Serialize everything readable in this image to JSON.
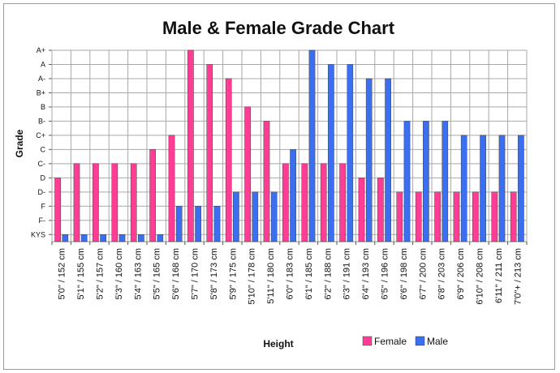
{
  "chart_data": {
    "type": "bar",
    "title": "Male & Female Grade Chart",
    "xlabel": "Height",
    "ylabel": "Grade",
    "y_categories": [
      "KYS",
      "F-",
      "F",
      "D-",
      "D",
      "C-",
      "C",
      "C+",
      "B-",
      "B",
      "B+",
      "A-",
      "A",
      "A+"
    ],
    "categories": [
      "5'0\" / 152 cm",
      "5'1\" / 155 cm",
      "5'2\" / 157 cm",
      "5'3\" / 160 cm",
      "5'4\" / 163 cm",
      "5'5\" / 165 cm",
      "5'6\" / 168 cm",
      "5'7\" / 170 cm",
      "5'8\" / 173 cm",
      "5'9\" / 175 cm",
      "5'10\" / 178 cm",
      "5'11\" / 180 cm",
      "6'0\" / 183 cm",
      "6'1\" / 185 cm",
      "6'2\" / 188 cm",
      "6'3\" / 191 cm",
      "6'4\" / 193 cm",
      "6'5\" / 196 cm",
      "6'6\" / 198 cm",
      "6'7\" / 200 cm",
      "6'8\" / 203 cm",
      "6'9\" / 206 cm",
      "6'10\" / 208 cm",
      "6'11\" / 211 cm",
      "7'0\"+ / 213 cm"
    ],
    "series": [
      {
        "name": "Female",
        "color": "#ff3d94",
        "values": [
          "D",
          "C-",
          "C-",
          "C-",
          "C-",
          "C",
          "C+",
          "A+",
          "A",
          "A-",
          "B",
          "B-",
          "C-",
          "C-",
          "C-",
          "C-",
          "D",
          "D",
          "D-",
          "D-",
          "D-",
          "D-",
          "D-",
          "D-",
          "D-"
        ]
      },
      {
        "name": "Male",
        "color": "#3c6ff0",
        "values": [
          "KYS",
          "KYS",
          "KYS",
          "KYS",
          "KYS",
          "KYS",
          "F",
          "F",
          "F",
          "D-",
          "D-",
          "D-",
          "C",
          "A+",
          "A",
          "A",
          "A-",
          "A-",
          "B-",
          "B-",
          "B-",
          "C+",
          "C+",
          "C+",
          "C+"
        ]
      }
    ],
    "grid": true,
    "legend": "bottom-right"
  }
}
